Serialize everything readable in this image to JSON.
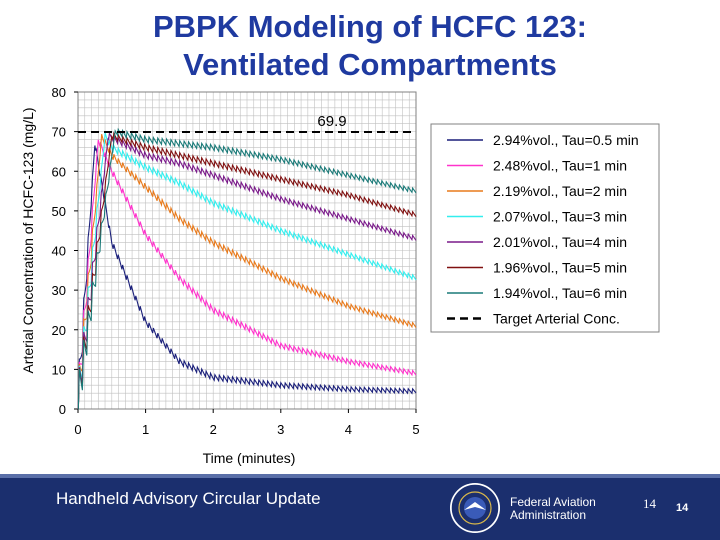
{
  "slide": {
    "title_line1": "PBPK Modeling of HCFC 123:",
    "title_line2": "Ventilated Compartments",
    "footer_text": "Handheld Advisory Circular Update",
    "agency_line1": "Federal Aviation",
    "agency_line2": "Administration",
    "page_left": "14",
    "page_right": "14"
  },
  "colors": {
    "title": "#1f3aa0",
    "footer_bg": "#1b2f6e",
    "grid": "#c0c0c0"
  },
  "chart_data": {
    "type": "line",
    "xlabel": "Time  (minutes)",
    "ylabel": "Arterial Concentration of HCFC-123  (mg/L)",
    "xlim": [
      0,
      5
    ],
    "ylim": [
      0,
      80
    ],
    "xticks": [
      0,
      1,
      2,
      3,
      4,
      5
    ],
    "yticks": [
      0,
      10,
      20,
      30,
      40,
      50,
      60,
      70,
      80
    ],
    "grid": true,
    "legend_position": "right",
    "target": {
      "name": "Target Arterial Conc.",
      "value": 69.9,
      "label": "69.9",
      "color": "#000000"
    },
    "series": [
      {
        "name": "2.94%vol., Tau=0.5 min",
        "color": "#1a1f7a",
        "peak_t": 0.25,
        "peak": 67,
        "points": [
          [
            0.25,
            67
          ],
          [
            0.5,
            42
          ],
          [
            1,
            22
          ],
          [
            1.5,
            12
          ],
          [
            2,
            8
          ],
          [
            3,
            6
          ],
          [
            4,
            5
          ],
          [
            5,
            4.5
          ]
        ]
      },
      {
        "name": "2.48%vol., Tau=1 min",
        "color": "#ff33cc",
        "peak_t": 0.3,
        "peak": 68,
        "points": [
          [
            0.3,
            68
          ],
          [
            0.5,
            60
          ],
          [
            1,
            44
          ],
          [
            1.5,
            33
          ],
          [
            2,
            25
          ],
          [
            3,
            16
          ],
          [
            4,
            12
          ],
          [
            5,
            9
          ]
        ]
      },
      {
        "name": "2.19%vol., Tau=2 min",
        "color": "#e87a1c",
        "peak_t": 0.35,
        "peak": 69,
        "points": [
          [
            0.35,
            69
          ],
          [
            0.5,
            64
          ],
          [
            1,
            56
          ],
          [
            1.5,
            48
          ],
          [
            2,
            42
          ],
          [
            3,
            33
          ],
          [
            4,
            26
          ],
          [
            5,
            21
          ]
        ]
      },
      {
        "name": "2.07%vol., Tau=3 min",
        "color": "#33eeee",
        "peak_t": 0.4,
        "peak": 69,
        "points": [
          [
            0.4,
            69
          ],
          [
            0.5,
            66
          ],
          [
            1,
            61
          ],
          [
            1.5,
            57
          ],
          [
            2,
            52
          ],
          [
            3,
            45
          ],
          [
            4,
            39
          ],
          [
            5,
            33
          ]
        ]
      },
      {
        "name": "2.01%vol., Tau=4 min",
        "color": "#7a1a8a",
        "peak_t": 0.45,
        "peak": 69,
        "points": [
          [
            0.45,
            69
          ],
          [
            1,
            64
          ],
          [
            1.5,
            62
          ],
          [
            2,
            59
          ],
          [
            3,
            53
          ],
          [
            4,
            48
          ],
          [
            5,
            43
          ]
        ]
      },
      {
        "name": "1.96%vol., Tau=5 min",
        "color": "#801010",
        "peak_t": 0.5,
        "peak": 69,
        "points": [
          [
            0.5,
            69
          ],
          [
            1,
            66
          ],
          [
            1.5,
            64
          ],
          [
            2,
            62
          ],
          [
            3,
            58
          ],
          [
            4,
            54
          ],
          [
            5,
            49
          ]
        ]
      },
      {
        "name": "1.94%vol., Tau=6 min",
        "color": "#1a7a78",
        "peak_t": 0.55,
        "peak": 70,
        "points": [
          [
            0.55,
            70
          ],
          [
            1,
            68
          ],
          [
            1.5,
            67
          ],
          [
            2,
            66
          ],
          [
            3,
            63
          ],
          [
            4,
            59
          ],
          [
            5,
            55
          ]
        ]
      }
    ]
  }
}
